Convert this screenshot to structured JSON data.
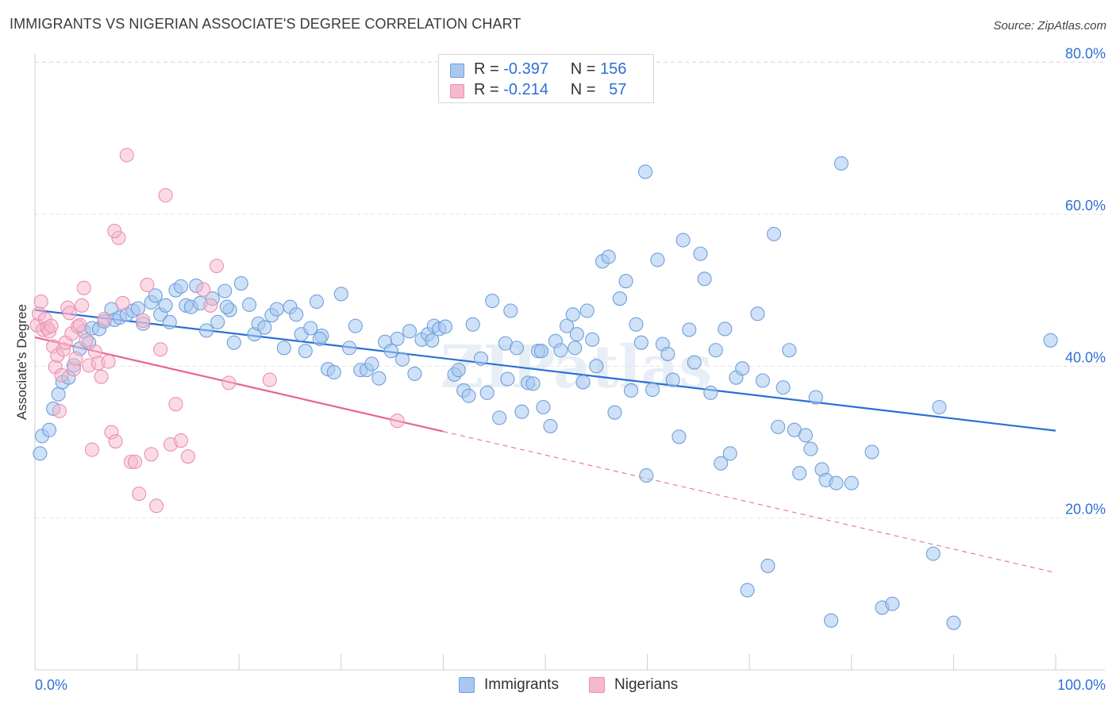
{
  "title": "IMMIGRANTS VS NIGERIAN ASSOCIATE'S DEGREE CORRELATION CHART",
  "source": "Source: ZipAtlas.com",
  "watermark": "ZIPatlas",
  "legend_top": [
    {
      "r_label": "R =",
      "r_value": "-0.397",
      "n_label": "N =",
      "n_value": "156"
    },
    {
      "r_label": "R =",
      "r_value": "-0.214",
      "n_label": "N =",
      "n_value": "57"
    }
  ],
  "legend_bottom": [
    {
      "label": "Immigrants"
    },
    {
      "label": "Nigerians"
    }
  ],
  "colors": {
    "immigrants_fill": "#a8c8f0",
    "immigrants_stroke": "#6f9fdc",
    "immigrants_line": "#2a6fd6",
    "nigerians_fill": "#f6b8cc",
    "nigerians_stroke": "#ec8fae",
    "nigerians_line": "#e8648f",
    "axis_label": "#2f6fd6",
    "grid": "#e3e3e3"
  },
  "chart_data": {
    "type": "scatter",
    "title": "IMMIGRANTS VS NIGERIAN ASSOCIATE'S DEGREE CORRELATION CHART",
    "xlabel": "",
    "ylabel": "Associate's Degree",
    "xlim": [
      0,
      100
    ],
    "ylim": [
      0,
      85
    ],
    "x_tick_labels": [
      "0.0%",
      "100.0%"
    ],
    "y_ticks": [
      20,
      40,
      60,
      80
    ],
    "y_tick_labels": [
      "20.0%",
      "40.0%",
      "60.0%",
      "80.0%"
    ],
    "grid": true,
    "legend_position": "top-center",
    "series": [
      {
        "name": "Immigrants",
        "r": -0.397,
        "n": 156,
        "trend": {
          "x": [
            0,
            100
          ],
          "y": [
            47.4,
            31.5
          ],
          "style": "solid"
        },
        "points": [
          [
            0.5,
            28.5
          ],
          [
            0.7,
            30.8
          ],
          [
            1.4,
            31.6
          ],
          [
            1.8,
            34.4
          ],
          [
            2.3,
            36.3
          ],
          [
            2.7,
            37.9
          ],
          [
            3.3,
            38.5
          ],
          [
            3.8,
            40.1
          ],
          [
            4.4,
            42.3
          ],
          [
            4.8,
            44.6
          ],
          [
            5.3,
            43.1
          ],
          [
            5.6,
            45.0
          ],
          [
            6.3,
            44.9
          ],
          [
            6.8,
            45.9
          ],
          [
            7.5,
            47.5
          ],
          [
            7.8,
            46.1
          ],
          [
            8.3,
            46.4
          ],
          [
            9.0,
            46.8
          ],
          [
            9.6,
            47.3
          ],
          [
            10.1,
            47.6
          ],
          [
            10.6,
            45.6
          ],
          [
            11.4,
            48.4
          ],
          [
            11.8,
            49.3
          ],
          [
            12.3,
            46.8
          ],
          [
            12.8,
            48.0
          ],
          [
            13.2,
            45.8
          ],
          [
            13.8,
            50.0
          ],
          [
            14.3,
            50.5
          ],
          [
            14.8,
            48.0
          ],
          [
            15.3,
            47.8
          ],
          [
            15.8,
            50.6
          ],
          [
            16.2,
            48.3
          ],
          [
            16.8,
            44.7
          ],
          [
            17.4,
            48.9
          ],
          [
            17.9,
            45.8
          ],
          [
            18.6,
            49.9
          ],
          [
            19.1,
            47.4
          ],
          [
            19.5,
            43.1
          ],
          [
            20.2,
            50.9
          ],
          [
            21.0,
            48.1
          ],
          [
            21.5,
            44.2
          ],
          [
            21.9,
            45.6
          ],
          [
            22.5,
            45.1
          ],
          [
            23.2,
            46.7
          ],
          [
            23.7,
            47.5
          ],
          [
            24.4,
            42.4
          ],
          [
            25.0,
            47.8
          ],
          [
            25.6,
            46.8
          ],
          [
            26.1,
            44.2
          ],
          [
            26.5,
            42.0
          ],
          [
            27.0,
            45.0
          ],
          [
            27.6,
            48.5
          ],
          [
            28.1,
            44.0
          ],
          [
            28.7,
            39.6
          ],
          [
            29.3,
            39.2
          ],
          [
            30.0,
            49.5
          ],
          [
            30.8,
            42.4
          ],
          [
            31.4,
            45.3
          ],
          [
            31.9,
            39.5
          ],
          [
            32.5,
            39.5
          ],
          [
            33.0,
            40.3
          ],
          [
            33.7,
            38.4
          ],
          [
            34.3,
            43.2
          ],
          [
            34.9,
            42.0
          ],
          [
            35.5,
            43.6
          ],
          [
            36.0,
            40.9
          ],
          [
            36.7,
            44.6
          ],
          [
            37.2,
            39.0
          ],
          [
            37.9,
            43.5
          ],
          [
            38.5,
            44.2
          ],
          [
            39.1,
            45.3
          ],
          [
            39.6,
            44.9
          ],
          [
            40.2,
            45.2
          ],
          [
            41.1,
            38.9
          ],
          [
            41.5,
            39.5
          ],
          [
            42.0,
            36.8
          ],
          [
            42.5,
            36.1
          ],
          [
            42.9,
            45.5
          ],
          [
            43.7,
            41.0
          ],
          [
            44.3,
            36.5
          ],
          [
            44.8,
            48.6
          ],
          [
            45.5,
            33.2
          ],
          [
            46.1,
            43.0
          ],
          [
            46.6,
            47.3
          ],
          [
            47.2,
            42.4
          ],
          [
            47.7,
            34.0
          ],
          [
            48.3,
            37.8
          ],
          [
            48.8,
            37.7
          ],
          [
            49.3,
            42.0
          ],
          [
            49.8,
            34.6
          ],
          [
            50.5,
            32.1
          ],
          [
            51.0,
            43.3
          ],
          [
            51.5,
            42.1
          ],
          [
            52.1,
            45.3
          ],
          [
            52.7,
            46.8
          ],
          [
            53.1,
            44.2
          ],
          [
            53.7,
            37.9
          ],
          [
            54.1,
            47.3
          ],
          [
            54.6,
            43.5
          ],
          [
            55.0,
            40.0
          ],
          [
            55.6,
            53.8
          ],
          [
            56.2,
            54.4
          ],
          [
            56.8,
            33.9
          ],
          [
            57.3,
            48.9
          ],
          [
            57.9,
            51.2
          ],
          [
            58.4,
            36.8
          ],
          [
            58.9,
            45.5
          ],
          [
            59.4,
            43.1
          ],
          [
            59.9,
            25.6
          ],
          [
            60.5,
            36.9
          ],
          [
            61.0,
            54.0
          ],
          [
            61.5,
            42.9
          ],
          [
            62.0,
            41.6
          ],
          [
            62.5,
            38.2
          ],
          [
            63.1,
            30.7
          ],
          [
            63.5,
            56.6
          ],
          [
            64.1,
            44.8
          ],
          [
            64.6,
            40.5
          ],
          [
            65.2,
            54.8
          ],
          [
            65.6,
            51.5
          ],
          [
            66.2,
            36.5
          ],
          [
            66.7,
            42.1
          ],
          [
            67.2,
            27.2
          ],
          [
            67.6,
            44.9
          ],
          [
            68.1,
            28.5
          ],
          [
            68.7,
            38.5
          ],
          [
            69.3,
            39.7
          ],
          [
            69.8,
            10.5
          ],
          [
            70.8,
            46.9
          ],
          [
            71.3,
            38.1
          ],
          [
            71.8,
            13.7
          ],
          [
            72.4,
            57.4
          ],
          [
            72.8,
            32.0
          ],
          [
            73.3,
            37.2
          ],
          [
            73.9,
            42.1
          ],
          [
            74.4,
            31.6
          ],
          [
            74.9,
            25.9
          ],
          [
            75.5,
            30.9
          ],
          [
            76.0,
            29.1
          ],
          [
            76.5,
            35.9
          ],
          [
            77.1,
            26.4
          ],
          [
            77.5,
            25.0
          ],
          [
            78.0,
            6.5
          ],
          [
            78.5,
            24.6
          ],
          [
            79.0,
            66.7
          ],
          [
            80.0,
            24.6
          ],
          [
            82.0,
            28.7
          ],
          [
            83.0,
            8.2
          ],
          [
            84.0,
            8.7
          ],
          [
            88.0,
            15.3
          ],
          [
            88.6,
            34.6
          ],
          [
            90.0,
            6.2
          ],
          [
            99.5,
            43.4
          ],
          [
            59.8,
            65.6
          ],
          [
            49.6,
            42.0
          ],
          [
            38.9,
            43.4
          ],
          [
            46.3,
            38.3
          ],
          [
            52.9,
            42.4
          ],
          [
            27.9,
            43.6
          ],
          [
            18.8,
            47.8
          ]
        ]
      },
      {
        "name": "Nigerians",
        "r": -0.214,
        "n": 57,
        "trend": {
          "x": [
            0,
            40
          ],
          "y": [
            43.8,
            31.4
          ],
          "style": "solid",
          "extended": {
            "x": [
              40,
              100
            ],
            "y": [
              31.4,
              12.8
            ],
            "style": "dashed"
          }
        },
        "points": [
          [
            0.2,
            45.4
          ],
          [
            0.4,
            46.9
          ],
          [
            0.6,
            48.5
          ],
          [
            0.8,
            44.8
          ],
          [
            1.0,
            46.2
          ],
          [
            1.2,
            45.0
          ],
          [
            1.4,
            44.6
          ],
          [
            1.6,
            45.3
          ],
          [
            1.8,
            42.6
          ],
          [
            2.0,
            39.9
          ],
          [
            2.2,
            41.4
          ],
          [
            2.4,
            34.1
          ],
          [
            2.6,
            38.8
          ],
          [
            2.8,
            42.2
          ],
          [
            3.0,
            43.1
          ],
          [
            3.2,
            47.7
          ],
          [
            3.4,
            47.0
          ],
          [
            3.6,
            44.3
          ],
          [
            3.8,
            39.6
          ],
          [
            4.0,
            41.0
          ],
          [
            4.2,
            45.2
          ],
          [
            4.4,
            45.4
          ],
          [
            4.6,
            48.0
          ],
          [
            4.8,
            50.3
          ],
          [
            5.0,
            43.4
          ],
          [
            5.3,
            40.1
          ],
          [
            5.6,
            29.0
          ],
          [
            5.9,
            41.9
          ],
          [
            6.2,
            40.4
          ],
          [
            6.5,
            38.6
          ],
          [
            6.8,
            46.2
          ],
          [
            7.2,
            40.6
          ],
          [
            7.5,
            31.3
          ],
          [
            7.9,
            30.1
          ],
          [
            8.2,
            56.9
          ],
          [
            8.6,
            48.3
          ],
          [
            9.0,
            67.8
          ],
          [
            9.4,
            27.4
          ],
          [
            9.8,
            27.4
          ],
          [
            10.2,
            23.2
          ],
          [
            10.6,
            46.0
          ],
          [
            11.0,
            50.7
          ],
          [
            11.4,
            28.4
          ],
          [
            11.9,
            21.6
          ],
          [
            12.3,
            42.2
          ],
          [
            12.8,
            62.5
          ],
          [
            13.3,
            29.7
          ],
          [
            13.8,
            35.0
          ],
          [
            14.3,
            30.2
          ],
          [
            15.0,
            28.1
          ],
          [
            16.5,
            50.1
          ],
          [
            17.2,
            48.0
          ],
          [
            17.8,
            53.2
          ],
          [
            19.0,
            37.8
          ],
          [
            23.0,
            38.2
          ],
          [
            35.5,
            32.8
          ],
          [
            7.8,
            57.8
          ]
        ]
      }
    ]
  }
}
